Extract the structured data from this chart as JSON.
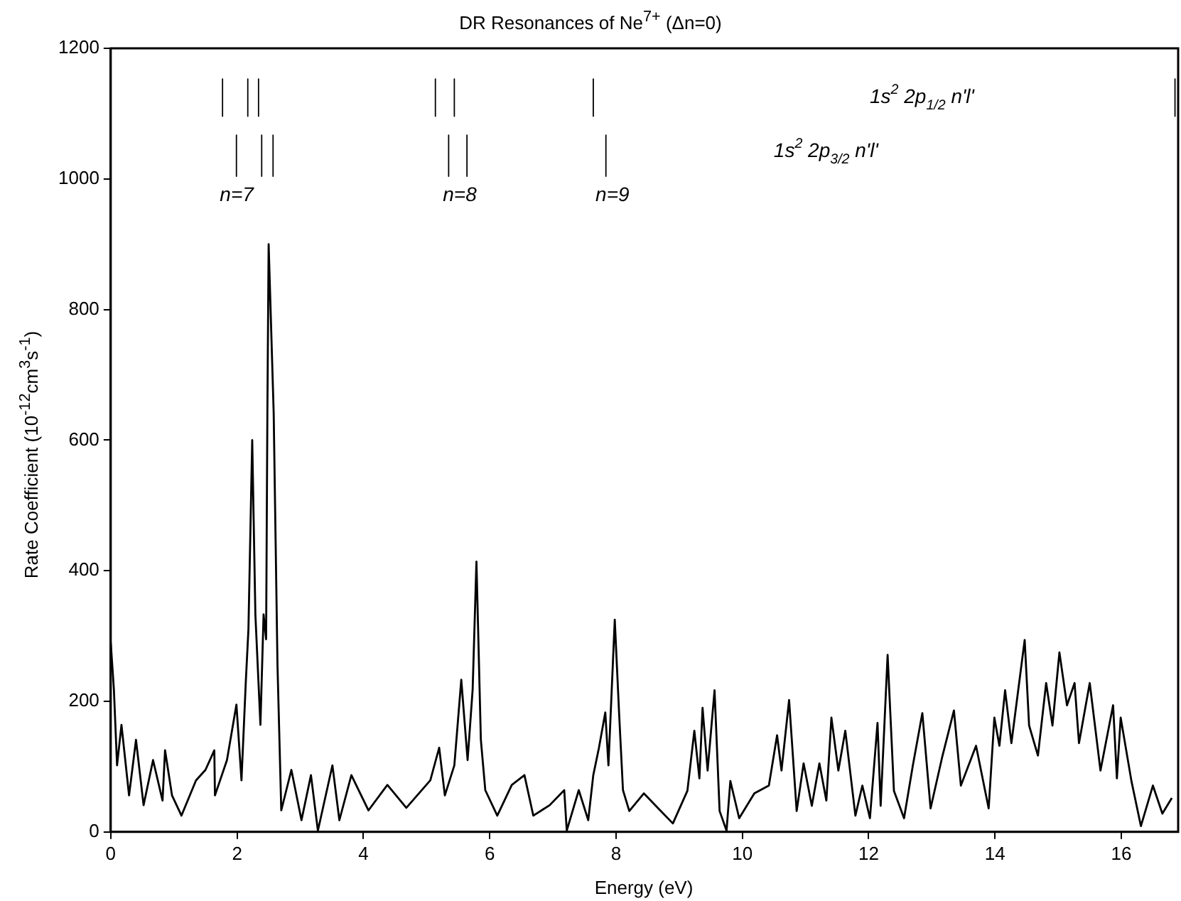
{
  "chart_data": {
    "type": "line",
    "title": "DR Resonances of Ne$^{7+}$ (Δn=0)",
    "xlabel": "Energy (eV)",
    "ylabel": "Rate Coefficient  (10$^{-12}$cm$^{3}$s$^{-1}$)",
    "xlim": [
      0,
      16.9
    ],
    "xticks": [
      0,
      2,
      4,
      6,
      8,
      10,
      12,
      14,
      16
    ],
    "ylim": [
      0,
      1200
    ],
    "yticks": [
      0,
      200,
      400,
      600,
      800,
      1000,
      1200
    ],
    "grid": false,
    "legend": false,
    "marker": "none",
    "line_style": "solid",
    "series": [
      {
        "color": "#000000",
        "x": [
          0,
          0.05,
          0.1,
          0.17,
          0.29,
          0.4,
          0.52,
          0.67,
          0.82,
          0.86,
          0.97,
          1.12,
          1.35,
          1.5,
          1.64,
          1.65,
          1.84,
          1.99,
          2.07,
          2.14,
          2.18,
          2.24,
          2.29,
          2.37,
          2.42,
          2.46,
          2.48,
          2.5,
          2.58,
          2.64,
          2.7,
          2.86,
          3.02,
          3.17,
          3.28,
          3.51,
          3.62,
          3.81,
          4.08,
          4.38,
          4.68,
          5.06,
          5.2,
          5.29,
          5.44,
          5.55,
          5.65,
          5.73,
          5.79,
          5.86,
          5.93,
          6.12,
          6.35,
          6.55,
          6.69,
          6.95,
          7.18,
          7.22,
          7.41,
          7.56,
          7.64,
          7.73,
          7.83,
          7.88,
          7.98,
          8.05,
          8.11,
          8.21,
          8.44,
          8.67,
          8.9,
          9.13,
          9.24,
          9.32,
          9.37,
          9.45,
          9.56,
          9.64,
          9.75,
          9.81,
          9.95,
          10.19,
          10.42,
          10.55,
          10.62,
          10.74,
          10.86,
          10.97,
          11.1,
          11.22,
          11.33,
          11.41,
          11.52,
          11.63,
          11.79,
          11.9,
          12.02,
          12.14,
          12.19,
          12.3,
          12.4,
          12.56,
          12.7,
          12.85,
          12.98,
          13.16,
          13.35,
          13.46,
          13.7,
          13.9,
          13.99,
          14.07,
          14.16,
          14.26,
          14.47,
          14.54,
          14.68,
          14.81,
          14.91,
          15.02,
          15.14,
          15.26,
          15.33,
          15.5,
          15.67,
          15.87,
          15.93,
          15.99,
          16.16,
          16.31,
          16.5,
          16.65,
          16.8
        ],
        "values": [
          290,
          218,
          102,
          164,
          56,
          141,
          41,
          110,
          48,
          125,
          56,
          25,
          79,
          95,
          125,
          56,
          110,
          195,
          79,
          233,
          310,
          600,
          333,
          164,
          333,
          295,
          641,
          900,
          641,
          256,
          33,
          95,
          18,
          87,
          2,
          102,
          18,
          87,
          33,
          72,
          37,
          79,
          129,
          56,
          102,
          233,
          110,
          218,
          414,
          141,
          64,
          25,
          72,
          87,
          25,
          41,
          64,
          2,
          64,
          18,
          87,
          129,
          183,
          102,
          325,
          179,
          64,
          32,
          59,
          36,
          13,
          63,
          155,
          82,
          190,
          94,
          217,
          32,
          2,
          78,
          21,
          59,
          71,
          148,
          94,
          202,
          32,
          105,
          40,
          105,
          48,
          175,
          94,
          155,
          25,
          71,
          21,
          167,
          40,
          271,
          63,
          21,
          102,
          182,
          36,
          113,
          186,
          71,
          132,
          36,
          175,
          132,
          217,
          136,
          294,
          163,
          117,
          228,
          163,
          275,
          194,
          228,
          136,
          228,
          94,
          194,
          82,
          175,
          78,
          9,
          71,
          28,
          52
        ]
      },
      {
        "color": "#000000",
        "x": [
          1.77,
          1.77
        ],
        "values": [
          1153,
          1096
        ]
      },
      {
        "color": "#000000",
        "x": [
          2.17,
          2.17
        ],
        "values": [
          1153,
          1096
        ]
      },
      {
        "color": "#000000",
        "x": [
          2.34,
          2.34
        ],
        "values": [
          1153,
          1096
        ]
      },
      {
        "color": "#000000",
        "x": [
          5.14,
          5.14
        ],
        "values": [
          1153,
          1096
        ]
      },
      {
        "color": "#000000",
        "x": [
          5.44,
          5.44
        ],
        "values": [
          1153,
          1096
        ]
      },
      {
        "color": "#000000",
        "x": [
          7.64,
          7.64
        ],
        "values": [
          1153,
          1096
        ]
      },
      {
        "color": "#000000",
        "x": [
          16.85,
          16.85
        ],
        "values": [
          1153,
          1096
        ]
      },
      {
        "color": "#000000",
        "x": [
          1.99,
          1.99
        ],
        "values": [
          1067,
          1004
        ]
      },
      {
        "color": "#000000",
        "x": [
          2.39,
          2.39
        ],
        "values": [
          1067,
          1004
        ]
      },
      {
        "color": "#000000",
        "x": [
          2.57,
          2.57
        ],
        "values": [
          1067,
          1004
        ]
      },
      {
        "color": "#000000",
        "x": [
          5.35,
          5.35
        ],
        "values": [
          1067,
          1004
        ]
      },
      {
        "color": "#000000",
        "x": [
          5.64,
          5.64
        ],
        "values": [
          1067,
          1004
        ]
      },
      {
        "color": "#000000",
        "x": [
          7.84,
          7.84
        ],
        "values": [
          1067,
          1004
        ]
      }
    ],
    "annotations": [
      "1s$^{2}$ 2p$_{1/2}$ n'l'",
      "1s$^{2}$ 2p$_{3/2}$ n'l'",
      "n=7",
      "n=8",
      "n=9"
    ]
  }
}
